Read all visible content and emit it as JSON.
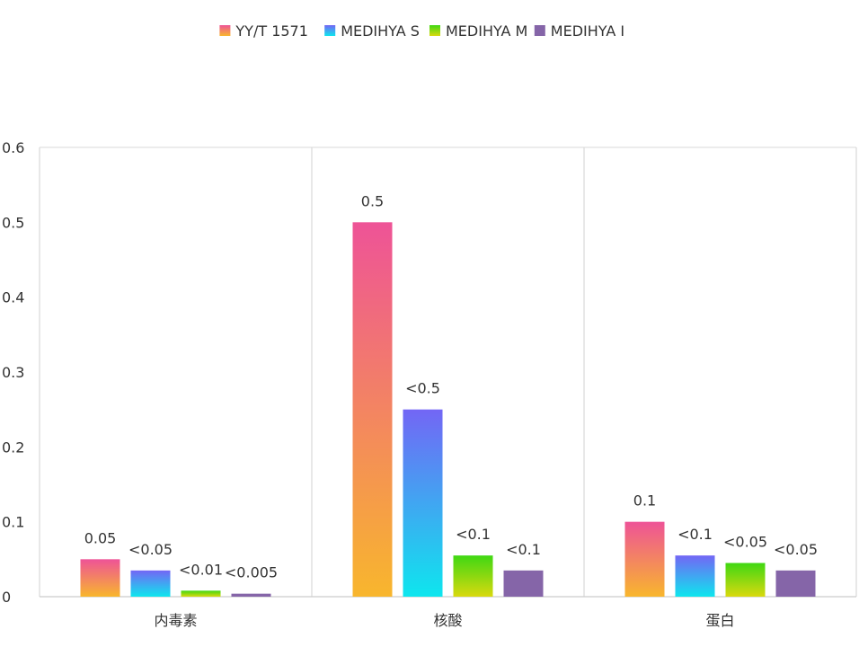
{
  "chart_data": {
    "type": "bar",
    "title": "",
    "xlabel": "",
    "ylabel": "",
    "categories": [
      "内毒素",
      "核酸",
      "蛋白"
    ],
    "ylim": [
      0,
      0.6
    ],
    "yticks": [
      "0",
      "0.1",
      "0.2",
      "0.3",
      "0.4",
      "0.5",
      "0.6"
    ],
    "grid": "vertical category separators",
    "legend_position": "top-center",
    "series": [
      {
        "name": "YY/T 1571",
        "values": [
          0.05,
          0.5,
          0.1
        ],
        "labels": [
          "0.05",
          "0.5",
          "0.1"
        ],
        "gradient": [
          "#ee5397",
          "#f8b62d"
        ]
      },
      {
        "name": "MEDIHYA S",
        "values": [
          0.035,
          0.25,
          0.055
        ],
        "labels": [
          "<0.05",
          "<0.5",
          "<0.1"
        ],
        "gradient": [
          "#7366f5",
          "#0ee6ee"
        ]
      },
      {
        "name": "MEDIHYA M",
        "values": [
          0.008,
          0.055,
          0.045
        ],
        "labels": [
          "<0.01",
          "<0.1",
          "<0.05"
        ],
        "gradient": [
          "#3fd813",
          "#d9d90e"
        ]
      },
      {
        "name": "MEDIHYA I",
        "values": [
          0.004,
          0.035,
          0.035
        ],
        "labels": [
          "<0.005",
          "<0.1",
          "<0.05"
        ],
        "gradient": [
          "#8565a8",
          "#8565a8"
        ]
      }
    ]
  }
}
